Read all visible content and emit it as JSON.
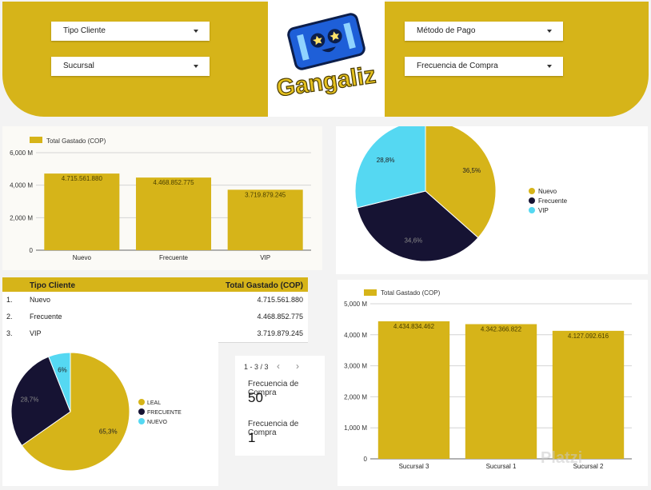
{
  "filters": {
    "tipo_cliente": "Tipo Cliente",
    "sucursal": "Sucursal",
    "metodo_pago": "Método de Pago",
    "frecuencia_compra": "Frecuencia de Compra"
  },
  "brand": {
    "name": "Gangaliz",
    "accent": "#d6b419",
    "dark": "#161333",
    "light_blue": "#55d8f2"
  },
  "chart1": {
    "legend": "Total Gastado (COP)",
    "ticks": [
      "0",
      "2,000 M",
      "4,000 M",
      "6,000 M"
    ],
    "data_labels": [
      "4.715.561.880",
      "4.468.852.775",
      "3.719.879.245"
    ]
  },
  "pie1": {
    "labels": [
      "36,5%",
      "34,6%",
      "28,8%"
    ]
  },
  "pie2": {
    "labels": [
      "65,3%",
      "28,7%",
      "6%"
    ]
  },
  "table": {
    "col1": "Tipo Cliente",
    "col2": "Total Gastado (COP)",
    "rows": [
      {
        "idx": "1.",
        "name": "Nuevo",
        "value": "4.715.561.880"
      },
      {
        "idx": "2.",
        "name": "Frecuente",
        "value": "4.468.852.775"
      },
      {
        "idx": "3.",
        "name": "VIP",
        "value": "3.719.879.245"
      }
    ],
    "pagination": "1 - 3 / 3"
  },
  "scorecards": [
    {
      "label": "Frecuencia de Compra",
      "value": "50"
    },
    {
      "label": "Frecuencia de Compra",
      "value": "1"
    }
  ],
  "chart3": {
    "legend": "Total Gastado (COP)",
    "ticks": [
      "0",
      "1,000 M",
      "2,000 M",
      "3,000 M",
      "4,000 M",
      "5,000 M"
    ],
    "data_labels": [
      "4.434.834.462",
      "4.342.366.822",
      "4.127.092.616"
    ]
  },
  "watermark": "Platzi",
  "chart_data": [
    {
      "type": "bar",
      "categories": [
        "Nuevo",
        "Frecuente",
        "VIP"
      ],
      "values": [
        4715561880,
        4468852775,
        3719879245
      ],
      "series": [
        {
          "name": "Total Gastado (COP)",
          "values": [
            4715561880,
            4468852775,
            3719879245
          ]
        }
      ],
      "ylim": [
        0,
        6000000000
      ],
      "grid": true,
      "legend_position": "top-left"
    },
    {
      "type": "pie",
      "categories": [
        "Nuevo",
        "Frecuente",
        "VIP"
      ],
      "values": [
        36.5,
        34.6,
        28.8
      ],
      "legend_position": "right"
    },
    {
      "type": "pie",
      "categories": [
        "LEAL",
        "FRECUENTE",
        "NUEVO"
      ],
      "values": [
        65.3,
        28.7,
        6
      ],
      "legend_position": "right"
    },
    {
      "type": "table",
      "columns": [
        "Tipo Cliente",
        "Total Gastado (COP)"
      ],
      "rows": [
        [
          "Nuevo",
          4715561880
        ],
        [
          "Frecuente",
          4468852775
        ],
        [
          "VIP",
          3719879245
        ]
      ]
    },
    {
      "type": "bar",
      "categories": [
        "Sucursal 3",
        "Sucursal 1",
        "Sucursal 2"
      ],
      "values": [
        4434834462,
        4342366822,
        4127092616
      ],
      "series": [
        {
          "name": "Total Gastado (COP)",
          "values": [
            4434834462,
            4342366822,
            4127092616
          ]
        }
      ],
      "ylim": [
        0,
        5000000000
      ],
      "grid": true,
      "legend_position": "top-left"
    }
  ]
}
